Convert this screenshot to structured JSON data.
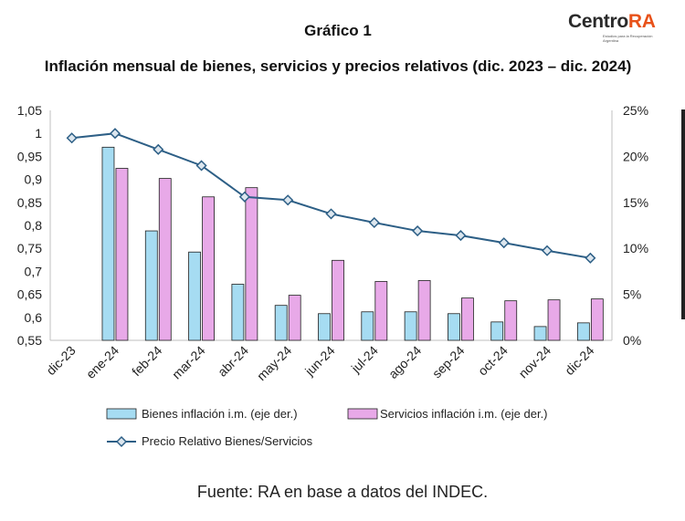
{
  "header": {
    "figure_label": "Gráfico 1",
    "title": "Inflación mensual de bienes, servicios y precios relativos (dic. 2023 – dic. 2024)"
  },
  "logo": {
    "word": "Centro",
    "word_accent": "RA",
    "subtitle": "Estudios para la Recuperación Argentina",
    "accent_color": "#e8521a"
  },
  "source": "Fuente: RA en base a datos del INDEC.",
  "colors": {
    "bienes": "#a6dcf2",
    "servicios": "#e8a9e8",
    "line": "#2d5f86",
    "marker_fill": "#dce6ee"
  },
  "chart_data": {
    "type": "bar",
    "categories": [
      "dic-23",
      "ene-24",
      "feb-24",
      "mar-24",
      "abr-24",
      "may-24",
      "jun-24",
      "jul-24",
      "ago-24",
      "sep-24",
      "oct-24",
      "nov-24",
      "dic-24"
    ],
    "y_left": {
      "ylim": [
        0.55,
        1.05
      ],
      "ticks": [
        "0,55",
        "0,6",
        "0,65",
        "0,7",
        "0,75",
        "0,8",
        "0,85",
        "0,9",
        "0,95",
        "1",
        "1,05"
      ]
    },
    "y_right": {
      "ylim": [
        0,
        25
      ],
      "ticks": [
        "0%",
        "5%",
        "10%",
        "15%",
        "20%",
        "25%"
      ]
    },
    "series": [
      {
        "name": "Bienes inflación i.m. (eje der.)",
        "axis": "right",
        "kind": "bar",
        "values": [
          null,
          21.0,
          11.9,
          9.6,
          6.1,
          3.8,
          2.9,
          3.1,
          3.1,
          2.9,
          2.0,
          1.5,
          1.9
        ]
      },
      {
        "name": "Servicios inflación i.m. (eje der.)",
        "axis": "right",
        "kind": "bar",
        "values": [
          null,
          18.7,
          17.6,
          15.6,
          16.6,
          4.9,
          8.7,
          6.4,
          6.5,
          4.6,
          4.3,
          4.4,
          4.5
        ]
      },
      {
        "name": "Precio Relativo Bienes/Servicios",
        "axis": "left",
        "kind": "line",
        "values": [
          0.99,
          1.0,
          0.965,
          0.93,
          0.862,
          0.855,
          0.825,
          0.806,
          0.788,
          0.778,
          0.762,
          0.745,
          0.729
        ]
      }
    ],
    "legend_position": "bottom",
    "grid": false
  }
}
